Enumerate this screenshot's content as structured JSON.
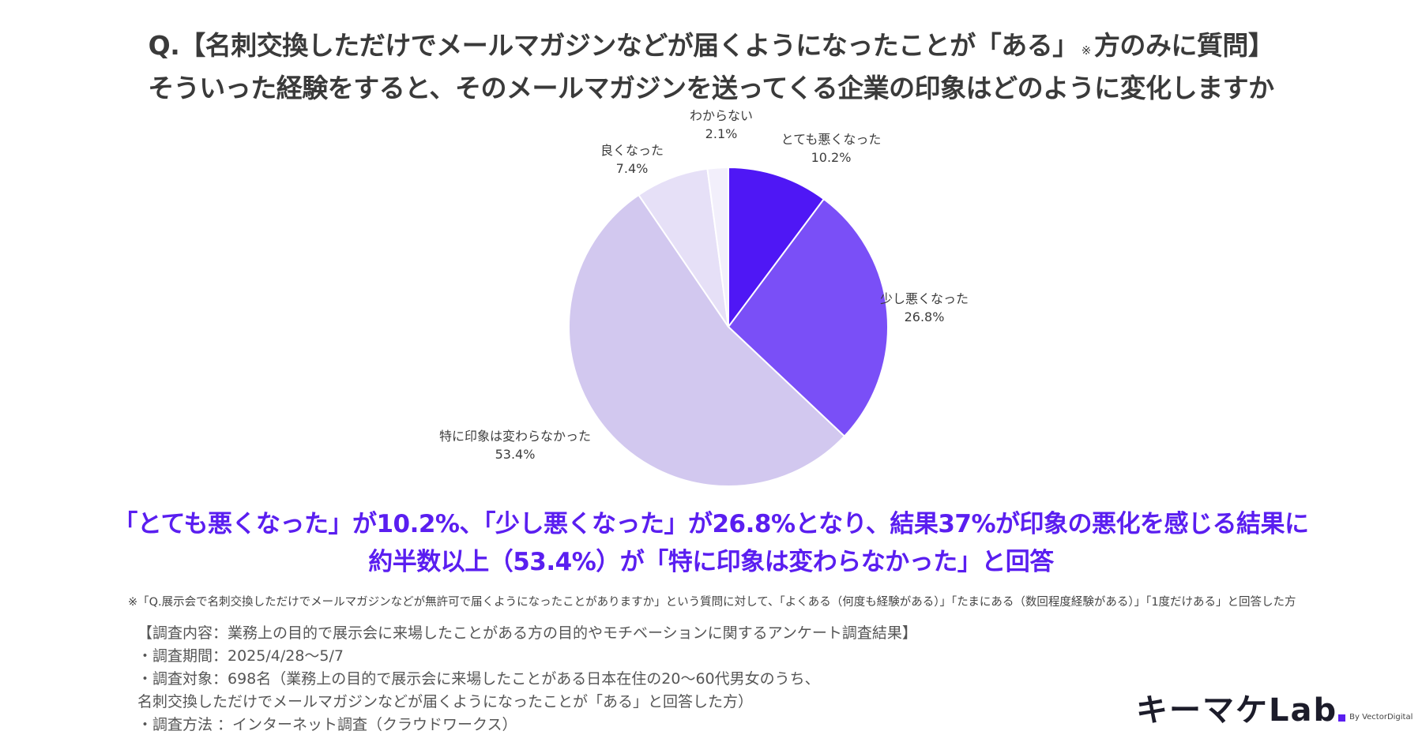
{
  "title": {
    "line1_main": "Q.【名刺交換しただけでメールマガジンなどが届くようになったことが「ある」",
    "line1_mark": "※",
    "line1_tail": "方のみに質問】",
    "line2": "そういった経験をすると、そのメールマガジンを送ってくる企業の印象はどのように変化しますか"
  },
  "chart_data": {
    "type": "pie",
    "start": "12 o'clock",
    "direction": "clockwise",
    "slices": [
      {
        "label": "とても悪くなった",
        "value": 10.2,
        "value_label": "10.2%",
        "color": "#4f17f5"
      },
      {
        "label": "少し悪くなった",
        "value": 26.8,
        "value_label": "26.8%",
        "color": "#7a4ff7"
      },
      {
        "label": "特に印象は変わらなかった",
        "value": 53.4,
        "value_label": "53.4%",
        "color": "#d2c8ef"
      },
      {
        "label": "良くなった",
        "value": 7.4,
        "value_label": "7.4%",
        "color": "#e6e0f7"
      },
      {
        "label": "わからない",
        "value": 2.1,
        "value_label": "2.1%",
        "color": "#f2effb"
      }
    ]
  },
  "headline": {
    "line1": "「とても悪くなった」が10.2%、「少し悪くなった」が26.8%となり、結果37%が印象の悪化を感じる結果に",
    "line2": "約半数以上（53.4%）が「特に印象は変わらなかった」と回答"
  },
  "note": "※「Q.展示会で名刺交換しただけでメールマガジンなどが無許可で届くようになったことがありますか」という質問に対して、「よくある（何度も経験がある）」「たまにある（数回程度経験がある）」「1度だけある」と回答した方",
  "survey_info": {
    "header": "【調査内容：業務上の目的で展示会に来場したことがある方の目的やモチベーションに関するアンケート調査結果】",
    "period": "・調査期間：2025/4/28〜5/7",
    "target": "・調査対象：698名（業務上の目的で展示会に来場したことがある日本在住の20〜60代男女のうち、",
    "target_cont": "名刺交換しただけでメールマガジンなどが届くようになったことが「ある」と回答した方）",
    "method": "・調査方法 ：インターネット調査（クラウドワークス）"
  },
  "logo": {
    "main": "キーマケLab",
    "sub": "By VectorDigital"
  }
}
